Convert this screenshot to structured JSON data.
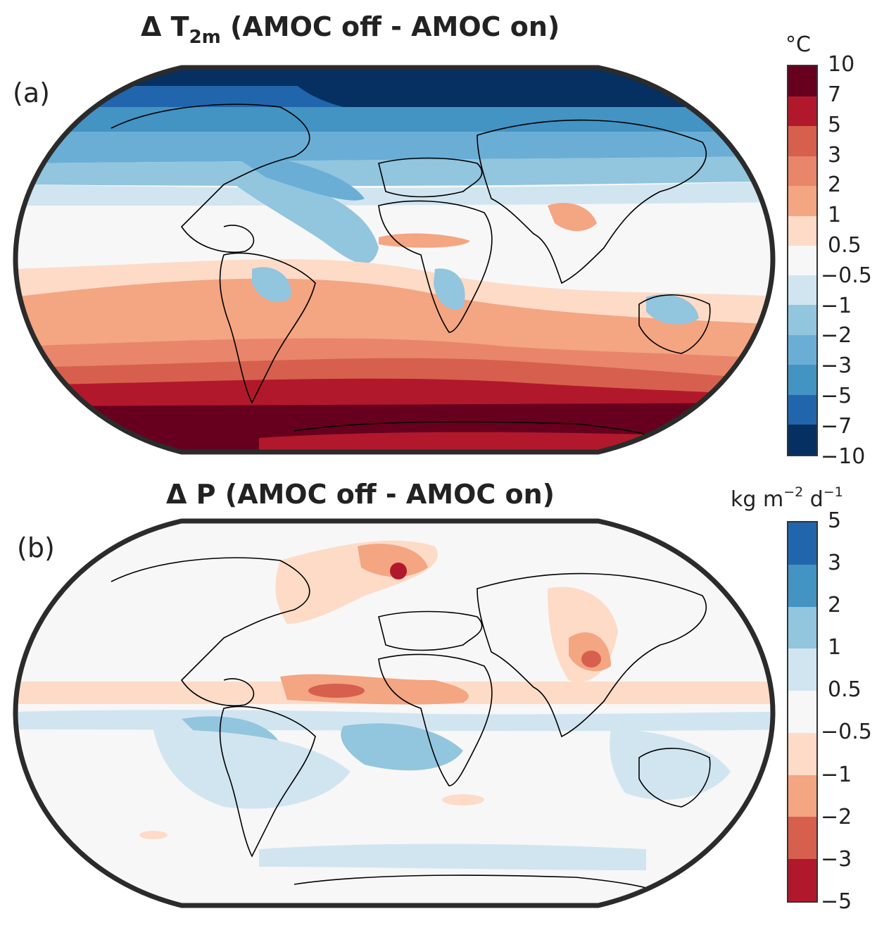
{
  "panels": [
    {
      "label": "(a)",
      "title_prefix": "Δ T",
      "title_sub": "2m",
      "title_suffix": " (AMOC off - AMOC on)",
      "unit": "°C",
      "colorbar_ticks": [
        "10",
        "7",
        "5",
        "3",
        "2",
        "1",
        "0.5",
        "−0.5",
        "−1",
        "−2",
        "−3",
        "−5",
        "−7",
        "−10"
      ],
      "colorbar_colors": [
        "#67001f",
        "#b2182b",
        "#d6604d",
        "#e8856a",
        "#f4a582",
        "#fddbc7",
        "#f7f7f7",
        "#d1e5f0",
        "#92c5de",
        "#6aaed6",
        "#4393c3",
        "#2166ac",
        "#053061"
      ]
    },
    {
      "label": "(b)",
      "title": "Δ P (AMOC off - AMOC on)",
      "unit_base": "kg m",
      "unit_exp1": "−2",
      "unit_mid": " d",
      "unit_exp2": "−1",
      "colorbar_ticks": [
        "5",
        "3",
        "2",
        "1",
        "0.5",
        "−0.5",
        "−1",
        "−2",
        "−3",
        "−5"
      ],
      "colorbar_colors": [
        "#2166ac",
        "#4393c3",
        "#92c5de",
        "#d1e5f0",
        "#f7f7f7",
        "#fddbc7",
        "#f4a582",
        "#d6604d",
        "#b2182b"
      ]
    }
  ]
}
